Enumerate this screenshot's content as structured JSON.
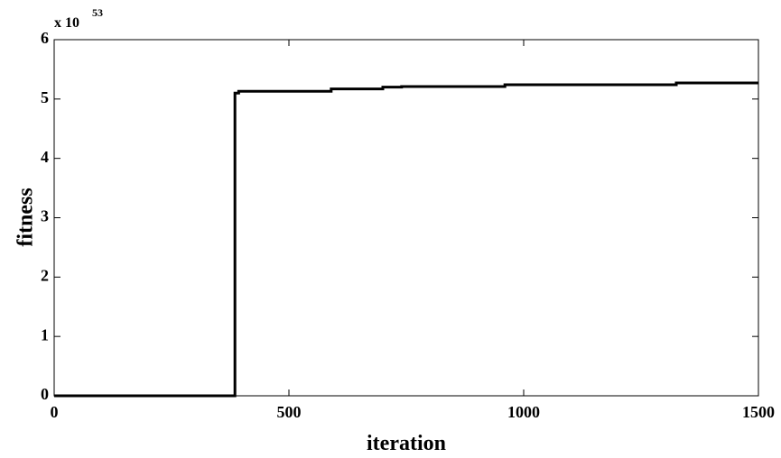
{
  "chart_data": {
    "type": "line",
    "xlabel": "iteration",
    "ylabel": "fitness",
    "y_scale_base": "x 10",
    "y_scale_exponent": "53",
    "x": [
      0,
      385,
      385,
      393,
      393,
      590,
      590,
      700,
      700,
      740,
      740,
      960,
      960,
      1325,
      1325,
      1500
    ],
    "series": [
      {
        "color": "#000000",
        "values": [
          0,
          0,
          5.1,
          5.1,
          5.13,
          5.13,
          5.17,
          5.17,
          5.2,
          5.2,
          5.21,
          5.21,
          5.24,
          5.24,
          5.27,
          5.27
        ]
      }
    ],
    "xlim": [
      0,
      1500
    ],
    "xticks": [
      0,
      500,
      1000,
      1500
    ],
    "ylim": [
      0,
      6
    ],
    "yticks": [
      0,
      1,
      2,
      3,
      4,
      5,
      6
    ],
    "grid": false
  }
}
